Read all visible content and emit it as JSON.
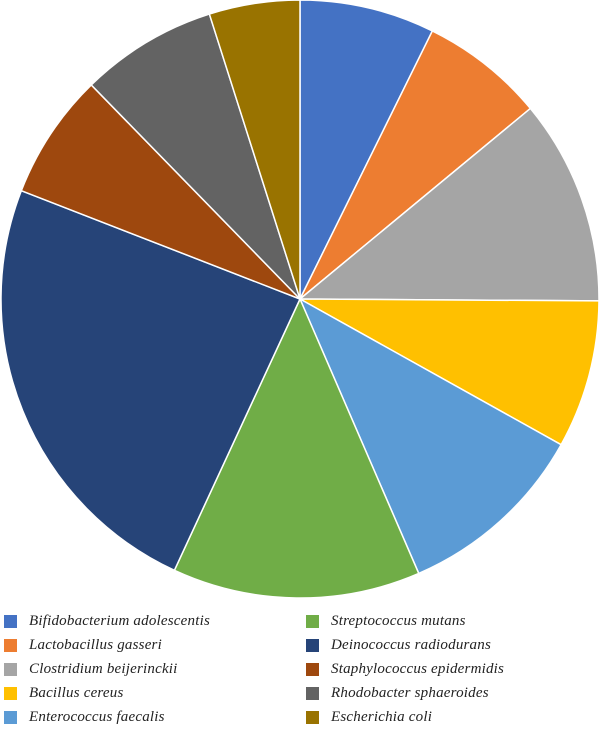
{
  "chart_data": {
    "type": "pie",
    "title": "",
    "start_angle_deg": 0,
    "direction": "clockwise",
    "slices": [
      {
        "label": "Bifidobacterium adolescentis",
        "value": 7.3,
        "color": "#4472C4"
      },
      {
        "label": "Lactobacillus gasseri",
        "value": 6.7,
        "color": "#ED7D31"
      },
      {
        "label": "Clostridium beijerinckii",
        "value": 11.1,
        "color": "#A5A5A5"
      },
      {
        "label": "Bacillus cereus",
        "value": 8.0,
        "color": "#FFC000"
      },
      {
        "label": "Enterococcus faecalis",
        "value": 10.4,
        "color": "#5B9BD5"
      },
      {
        "label": "Streptococcus mutans",
        "value": 13.4,
        "color": "#70AD47"
      },
      {
        "label": "Deinococcus radiodurans",
        "value": 24.0,
        "color": "#264478"
      },
      {
        "label": "Staphylococcus epidermidis",
        "value": 6.8,
        "color": "#9E480E"
      },
      {
        "label": "Rhodobacter sphaeroides",
        "value": 7.4,
        "color": "#636363"
      },
      {
        "label": "Escherichia coli",
        "value": 4.9,
        "color": "#997300"
      }
    ],
    "legend": {
      "placement": "bottom",
      "columns": 2,
      "left_column": [
        "Bifidobacterium adolescentis",
        "Lactobacillus gasseri",
        "Clostridium beijerinckii",
        "Bacillus cereus",
        "Enterococcus faecalis"
      ],
      "right_column": [
        "Streptococcus mutans",
        "Deinococcus radiodurans",
        "Staphylococcus epidermidis",
        "Rhodobacter sphaeroides",
        "Escherichia coli"
      ]
    }
  }
}
